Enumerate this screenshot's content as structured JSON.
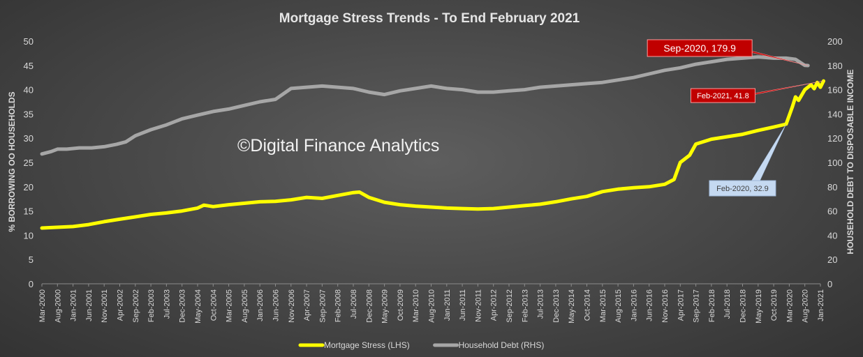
{
  "chart_data": {
    "type": "line",
    "title": "Mortgage Stress Trends - To End February 2021",
    "watermark": "©Digital Finance Analytics",
    "ylabel_left": "% BORROWING OO HOUSEHOLDS",
    "ylabel_right": "HOUSEHOLD DEBT TO DISPOSABLE INCOME",
    "y_left_range": [
      0,
      50
    ],
    "y_left_ticks": [
      "0",
      "5",
      "10",
      "15",
      "20",
      "25",
      "30",
      "35",
      "40",
      "45",
      "50"
    ],
    "y_right_range": [
      0,
      200
    ],
    "y_right_ticks": [
      "0",
      "20",
      "40",
      "60",
      "80",
      "100",
      "120",
      "140",
      "160",
      "180",
      "200"
    ],
    "x_range": [
      "2000-03",
      "2021-01"
    ],
    "x_ticks": [
      "Mar-2000",
      "Aug-2000",
      "Jan-2001",
      "Jun-2001",
      "Nov-2001",
      "Apr-2002",
      "Sep-2002",
      "Feb-2003",
      "Jul-2003",
      "Dec-2003",
      "May-2004",
      "Oct-2004",
      "Mar-2005",
      "Aug-2005",
      "Jan-2006",
      "Jun-2006",
      "Nov-2006",
      "Apr-2007",
      "Sep-2007",
      "Feb-2008",
      "Jul-2008",
      "Dec-2008",
      "May-2009",
      "Oct-2009",
      "Mar-2010",
      "Aug-2010",
      "Jan-2011",
      "Jun-2011",
      "Nov-2011",
      "Apr-2012",
      "Sep-2012",
      "Feb-2013",
      "Jul-2013",
      "Dec-2013",
      "May-2014",
      "Oct-2014",
      "Mar-2015",
      "Aug-2015",
      "Jan-2016",
      "Jun-2016",
      "Nov-2016",
      "Apr-2017",
      "Sep-2017",
      "Feb-2018",
      "Jul-2018",
      "Dec-2018",
      "May-2019",
      "Oct-2019",
      "Mar-2020",
      "Aug-2020",
      "Jan-2021"
    ],
    "grid": false,
    "legend_position": "bottom",
    "series": [
      {
        "name": "Mortgage Stress (LHS)",
        "axis": "left",
        "color": "#ffff00",
        "points": [
          [
            "2000-03",
            11.5
          ],
          [
            "2001-01",
            11.8
          ],
          [
            "2001-06",
            12.2
          ],
          [
            "2001-11",
            12.8
          ],
          [
            "2002-04",
            13.3
          ],
          [
            "2002-09",
            13.8
          ],
          [
            "2003-02",
            14.3
          ],
          [
            "2003-07",
            14.6
          ],
          [
            "2003-12",
            15.0
          ],
          [
            "2004-05",
            15.6
          ],
          [
            "2004-07",
            16.2
          ],
          [
            "2004-10",
            15.9
          ],
          [
            "2005-03",
            16.3
          ],
          [
            "2005-08",
            16.6
          ],
          [
            "2006-01",
            16.9
          ],
          [
            "2006-06",
            17.0
          ],
          [
            "2006-11",
            17.3
          ],
          [
            "2007-04",
            17.8
          ],
          [
            "2007-09",
            17.6
          ],
          [
            "2008-02",
            18.2
          ],
          [
            "2008-07",
            18.8
          ],
          [
            "2008-09",
            18.9
          ],
          [
            "2008-12",
            17.8
          ],
          [
            "2009-05",
            16.8
          ],
          [
            "2009-10",
            16.3
          ],
          [
            "2010-03",
            16.0
          ],
          [
            "2010-08",
            15.8
          ],
          [
            "2011-01",
            15.6
          ],
          [
            "2011-06",
            15.5
          ],
          [
            "2011-11",
            15.4
          ],
          [
            "2012-04",
            15.5
          ],
          [
            "2012-09",
            15.8
          ],
          [
            "2013-02",
            16.1
          ],
          [
            "2013-07",
            16.4
          ],
          [
            "2013-12",
            16.9
          ],
          [
            "2014-05",
            17.5
          ],
          [
            "2014-10",
            18.0
          ],
          [
            "2015-03",
            19.0
          ],
          [
            "2015-08",
            19.5
          ],
          [
            "2016-01",
            19.8
          ],
          [
            "2016-06",
            20.0
          ],
          [
            "2016-11",
            20.5
          ],
          [
            "2017-02",
            21.5
          ],
          [
            "2017-04",
            25.0
          ],
          [
            "2017-07",
            26.5
          ],
          [
            "2017-09",
            28.8
          ],
          [
            "2018-02",
            29.8
          ],
          [
            "2018-07",
            30.3
          ],
          [
            "2018-12",
            30.8
          ],
          [
            "2019-05",
            31.6
          ],
          [
            "2019-10",
            32.3
          ],
          [
            "2020-02",
            32.9
          ],
          [
            "2020-04",
            36.5
          ],
          [
            "2020-05",
            38.5
          ],
          [
            "2020-06",
            37.8
          ],
          [
            "2020-08",
            40.0
          ],
          [
            "2020-10",
            41.0
          ],
          [
            "2020-11",
            40.2
          ],
          [
            "2020-12",
            41.5
          ],
          [
            "2021-01",
            40.5
          ],
          [
            "2021-02",
            41.8
          ]
        ]
      },
      {
        "name": "Household Debt (RHS)",
        "axis": "right",
        "color": "#a6a6a6",
        "points": [
          [
            "2000-03",
            107
          ],
          [
            "2000-06",
            109
          ],
          [
            "2000-08",
            111
          ],
          [
            "2000-11",
            111
          ],
          [
            "2001-03",
            112
          ],
          [
            "2001-07",
            112
          ],
          [
            "2001-11",
            113
          ],
          [
            "2002-03",
            115
          ],
          [
            "2002-06",
            117
          ],
          [
            "2002-09",
            122
          ],
          [
            "2003-02",
            127
          ],
          [
            "2003-07",
            131
          ],
          [
            "2003-12",
            136
          ],
          [
            "2004-05",
            139
          ],
          [
            "2004-10",
            142
          ],
          [
            "2005-03",
            144
          ],
          [
            "2005-08",
            147
          ],
          [
            "2006-01",
            150
          ],
          [
            "2006-06",
            152
          ],
          [
            "2006-11",
            161
          ],
          [
            "2007-04",
            162
          ],
          [
            "2007-09",
            163
          ],
          [
            "2008-02",
            162
          ],
          [
            "2008-07",
            161
          ],
          [
            "2008-12",
            158
          ],
          [
            "2009-05",
            156
          ],
          [
            "2009-10",
            159
          ],
          [
            "2010-03",
            161
          ],
          [
            "2010-08",
            163
          ],
          [
            "2011-01",
            161
          ],
          [
            "2011-06",
            160
          ],
          [
            "2011-11",
            158
          ],
          [
            "2012-04",
            158
          ],
          [
            "2012-09",
            159
          ],
          [
            "2013-02",
            160
          ],
          [
            "2013-07",
            162
          ],
          [
            "2013-12",
            163
          ],
          [
            "2014-05",
            164
          ],
          [
            "2014-10",
            165
          ],
          [
            "2015-03",
            166
          ],
          [
            "2015-08",
            168
          ],
          [
            "2016-01",
            170
          ],
          [
            "2016-06",
            173
          ],
          [
            "2016-11",
            176
          ],
          [
            "2017-04",
            178
          ],
          [
            "2017-09",
            181
          ],
          [
            "2018-02",
            183
          ],
          [
            "2018-07",
            185
          ],
          [
            "2018-12",
            186
          ],
          [
            "2019-05",
            187
          ],
          [
            "2019-10",
            186
          ],
          [
            "2020-02",
            186
          ],
          [
            "2020-05",
            185
          ],
          [
            "2020-08",
            180
          ],
          [
            "2020-09",
            179.9
          ]
        ]
      }
    ],
    "annotations": [
      {
        "label": "Sep-2020, 179.9",
        "series": 1,
        "at": "2020-09",
        "style": "red"
      },
      {
        "label": "Feb-2021, 41.8",
        "series": 0,
        "at": "2021-02",
        "style": "red"
      },
      {
        "label": "Feb-2020, 32.9",
        "series": 0,
        "at": "2020-02",
        "style": "blue"
      }
    ],
    "colors": {
      "annotation_red": "#c00000",
      "annotation_blue": "#c5d9f1",
      "axis_text": "#d9d9d9"
    }
  }
}
